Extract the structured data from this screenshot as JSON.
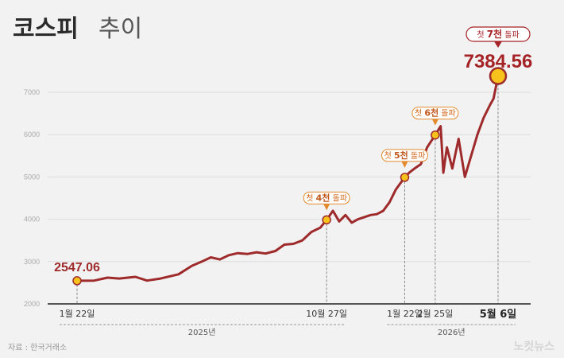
{
  "chart_data": {
    "type": "line",
    "title": "코스피",
    "subtitle": "추이",
    "xlabel": "",
    "ylabel": "",
    "ylim": [
      2000,
      7500
    ],
    "yticks": [
      "2000",
      "3000",
      "4000",
      "5000",
      "6000",
      "7000"
    ],
    "grid": true,
    "series_color": "#9e2a2b",
    "marker_color": "#f7c21b",
    "x": [
      "2025-01-22",
      "2025-02-10",
      "2025-02-25",
      "2025-03-10",
      "2025-03-28",
      "2025-04-10",
      "2025-04-25",
      "2025-05-15",
      "2025-05-30",
      "2025-06-10",
      "2025-06-20",
      "2025-06-30",
      "2025-07-10",
      "2025-07-20",
      "2025-07-31",
      "2025-08-10",
      "2025-08-20",
      "2025-08-31",
      "2025-09-10",
      "2025-09-20",
      "2025-09-30",
      "2025-10-10",
      "2025-10-20",
      "2025-10-27",
      "2025-11-03",
      "2025-11-10",
      "2025-11-17",
      "2025-11-24",
      "2025-12-01",
      "2025-12-08",
      "2025-12-15",
      "2025-12-22",
      "2025-12-29",
      "2026-01-05",
      "2026-01-12",
      "2026-01-22",
      "2026-01-27",
      "2026-02-02",
      "2026-02-09",
      "2026-02-16",
      "2026-02-25",
      "2026-03-03",
      "2026-03-06",
      "2026-03-10",
      "2026-03-16",
      "2026-03-23",
      "2026-03-30",
      "2026-04-06",
      "2026-04-13",
      "2026-04-20",
      "2026-04-27",
      "2026-05-01",
      "2026-05-06"
    ],
    "values": [
      2547.06,
      2550,
      2620,
      2600,
      2640,
      2550,
      2600,
      2700,
      2900,
      3000,
      3100,
      3050,
      3150,
      3200,
      3180,
      3220,
      3190,
      3250,
      3400,
      3420,
      3500,
      3700,
      3800,
      3986,
      4200,
      3950,
      4100,
      3920,
      4000,
      4050,
      4100,
      4120,
      4200,
      4400,
      4700,
      4990,
      5100,
      5200,
      5300,
      5700,
      5990,
      6200,
      5100,
      5700,
      5200,
      5900,
      5000,
      5500,
      6000,
      6400,
      6700,
      6850,
      7384.56
    ],
    "start_label": "2547.06",
    "final_label": "7384.56",
    "x_tick_labels": [
      {
        "x": "2025-01-22",
        "label": "1월 22일"
      },
      {
        "x": "2025-10-27",
        "label": "10월 27일"
      },
      {
        "x": "2026-01-22",
        "label": "1월 22일"
      },
      {
        "x": "2026-02-25",
        "label": "2월 25일"
      },
      {
        "x": "2026-05-06",
        "label": "5월 6일"
      }
    ],
    "years": [
      {
        "label": "2025년",
        "from": "2025-01-22",
        "to": "2025-10-27"
      },
      {
        "label": "2026년",
        "from": "2026-01-22",
        "to": "2026-05-06"
      }
    ],
    "annotations": [
      {
        "x": "2025-10-27",
        "value": 3986,
        "pre": "첫 ",
        "num": "4천",
        "post": " 돌파"
      },
      {
        "x": "2026-01-22",
        "value": 4990,
        "pre": "첫 ",
        "num": "5천",
        "post": " 돌파"
      },
      {
        "x": "2026-02-25",
        "value": 5990,
        "pre": "첫 ",
        "num": "6천",
        "post": " 돌파"
      }
    ],
    "final_annotation": {
      "pre": "첫 ",
      "num": "7천",
      "post": " 돌파"
    }
  },
  "source": "자료 : 한국거래소",
  "logo": "노컷뉴스"
}
